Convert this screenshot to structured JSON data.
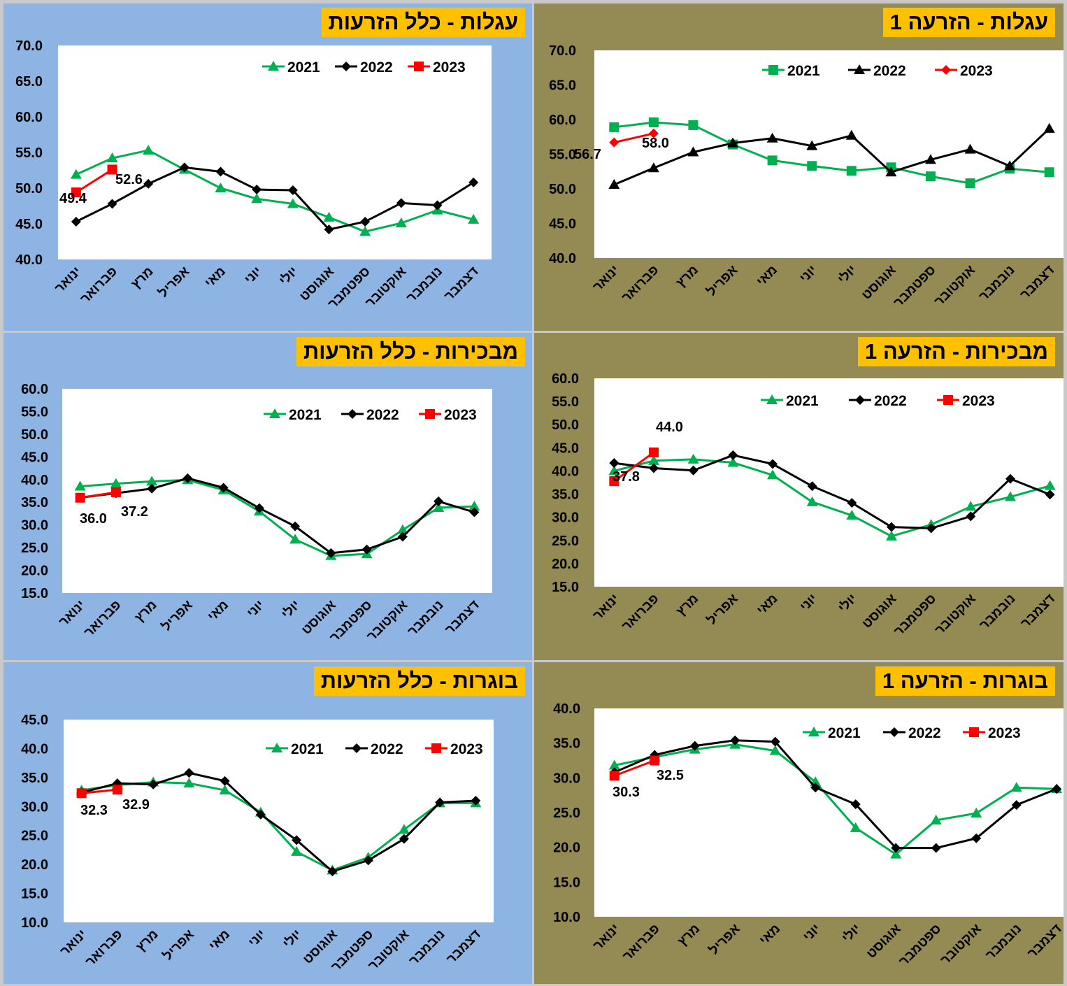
{
  "months": [
    "ינואר",
    "פברואר",
    "מרץ",
    "אפריל",
    "מאי",
    "יוני",
    "יולי",
    "אוגוסט",
    "ספטמבר",
    "אוקטובר",
    "נובמבר",
    "דצמבר"
  ],
  "colors": {
    "2021": "#00b050",
    "2022": "#000000",
    "2023": "#ff0000",
    "blue_bg": "#8db4e2",
    "olive_bg": "#948a54",
    "title_bg": "#ffc000"
  },
  "chart_data": [
    {
      "id": "calves-first",
      "title": "עגלות - הזרעה 1",
      "type": "line",
      "ylim": [
        40,
        70
      ],
      "yticks": [
        40,
        45,
        50,
        55,
        60,
        65,
        70
      ],
      "legend": [
        "2021",
        "2022",
        "2023"
      ],
      "series": [
        {
          "name": "2021",
          "marker": "square",
          "values": [
            58.9,
            59.6,
            59.2,
            56.4,
            54.1,
            53.3,
            52.6,
            53.1,
            51.8,
            50.8,
            52.9,
            52.4
          ]
        },
        {
          "name": "2022",
          "marker": "triangle",
          "values": [
            50.6,
            53.0,
            55.3,
            56.6,
            57.3,
            56.2,
            57.7,
            52.4,
            54.2,
            55.7,
            53.3,
            58.7
          ]
        },
        {
          "name": "2023",
          "marker": "diamond",
          "values": [
            56.7,
            58.0
          ]
        }
      ],
      "data_labels": [
        {
          "text": "56.7"
        },
        {
          "text": "58.0"
        }
      ]
    },
    {
      "id": "calves-all",
      "title": "עגלות - כלל הזרעות",
      "type": "line",
      "ylim": [
        40,
        70
      ],
      "yticks": [
        40,
        45,
        50,
        55,
        60,
        65,
        70
      ],
      "legend": [
        "2021",
        "2022",
        "2023"
      ],
      "series": [
        {
          "name": "2021",
          "marker": "triangle",
          "values": [
            51.9,
            54.2,
            55.3,
            52.6,
            50.0,
            48.5,
            47.8,
            45.9,
            43.9,
            45.1,
            46.9,
            45.6
          ]
        },
        {
          "name": "2022",
          "marker": "diamond",
          "values": [
            45.3,
            47.8,
            50.6,
            52.9,
            52.3,
            49.8,
            49.7,
            44.2,
            45.3,
            47.9,
            47.6,
            50.8
          ]
        },
        {
          "name": "2023",
          "marker": "square",
          "values": [
            49.4,
            52.6
          ]
        }
      ],
      "data_labels": [
        {
          "text": "49.4"
        },
        {
          "text": "52.6"
        }
      ]
    },
    {
      "id": "firstcalf-first",
      "title": "מבכירות - הזרעה 1",
      "type": "line",
      "ylim": [
        15,
        60
      ],
      "yticks": [
        15,
        20,
        25,
        30,
        35,
        40,
        45,
        50,
        55,
        60
      ],
      "legend": [
        "2021",
        "2022",
        "2023"
      ],
      "series": [
        {
          "name": "2021",
          "marker": "triangle",
          "values": [
            40.0,
            42.2,
            42.5,
            41.8,
            39.1,
            33.3,
            30.4,
            25.9,
            28.4,
            32.3,
            34.4,
            36.8
          ]
        },
        {
          "name": "2022",
          "marker": "diamond",
          "values": [
            41.7,
            40.6,
            40.1,
            43.4,
            41.5,
            36.7,
            33.1,
            27.9,
            27.6,
            30.2,
            38.3,
            34.9
          ]
        },
        {
          "name": "2023",
          "marker": "square",
          "values": [
            37.8,
            44.0
          ]
        }
      ],
      "data_labels": [
        {
          "text": "37.8"
        },
        {
          "text": "44.0"
        }
      ]
    },
    {
      "id": "firstcalf-all",
      "title": "מבכירות - כלל הזרעות",
      "type": "line",
      "ylim": [
        15,
        60
      ],
      "yticks": [
        15,
        20,
        25,
        30,
        35,
        40,
        45,
        50,
        55,
        60
      ],
      "legend": [
        "2021",
        "2022",
        "2023"
      ],
      "series": [
        {
          "name": "2021",
          "marker": "triangle",
          "values": [
            38.5,
            39.1,
            39.6,
            39.9,
            37.7,
            33.0,
            26.8,
            23.2,
            23.6,
            28.9,
            33.8,
            34.1
          ]
        },
        {
          "name": "2022",
          "marker": "diamond",
          "values": [
            36.0,
            37.0,
            38.0,
            40.3,
            38.2,
            33.7,
            29.7,
            23.8,
            24.6,
            27.4,
            35.2,
            32.8
          ]
        },
        {
          "name": "2023",
          "marker": "square",
          "values": [
            36.0,
            37.2
          ]
        }
      ],
      "data_labels": [
        {
          "text": "36.0"
        },
        {
          "text": "37.2"
        }
      ]
    },
    {
      "id": "cows-first",
      "title": "בוגרות - הזרעה 1",
      "type": "line",
      "ylim": [
        10,
        40
      ],
      "yticks": [
        10,
        15,
        20,
        25,
        30,
        35,
        40
      ],
      "legend": [
        "2021",
        "2022",
        "2023"
      ],
      "series": [
        {
          "name": "2021",
          "marker": "triangle",
          "values": [
            31.8,
            33.0,
            34.1,
            34.8,
            33.9,
            29.4,
            22.8,
            19.0,
            23.9,
            24.9,
            28.6,
            28.4
          ]
        },
        {
          "name": "2022",
          "marker": "diamond",
          "values": [
            30.8,
            33.3,
            34.6,
            35.4,
            35.2,
            28.6,
            26.2,
            19.9,
            19.9,
            21.3,
            26.1,
            28.4
          ]
        },
        {
          "name": "2023",
          "marker": "square",
          "values": [
            30.3,
            32.5
          ]
        }
      ],
      "data_labels": [
        {
          "text": "30.3"
        },
        {
          "text": "32.5"
        }
      ]
    },
    {
      "id": "cows-all",
      "title": "בוגרות - כלל הזרעות",
      "type": "line",
      "ylim": [
        10,
        45
      ],
      "yticks": [
        10,
        15,
        20,
        25,
        30,
        35,
        40,
        45
      ],
      "legend": [
        "2021",
        "2022",
        "2023"
      ],
      "series": [
        {
          "name": "2021",
          "marker": "triangle",
          "values": [
            32.8,
            33.7,
            34.2,
            34.0,
            32.8,
            29.0,
            22.2,
            19.0,
            21.2,
            26.0,
            30.6,
            30.6
          ]
        },
        {
          "name": "2022",
          "marker": "diamond",
          "values": [
            32.4,
            34.0,
            33.8,
            35.8,
            34.4,
            28.6,
            24.2,
            18.8,
            20.7,
            24.4,
            30.7,
            31.0
          ]
        },
        {
          "name": "2023",
          "marker": "square",
          "values": [
            32.3,
            32.9
          ]
        }
      ],
      "data_labels": [
        {
          "text": "32.3"
        },
        {
          "text": "32.9"
        }
      ]
    }
  ]
}
